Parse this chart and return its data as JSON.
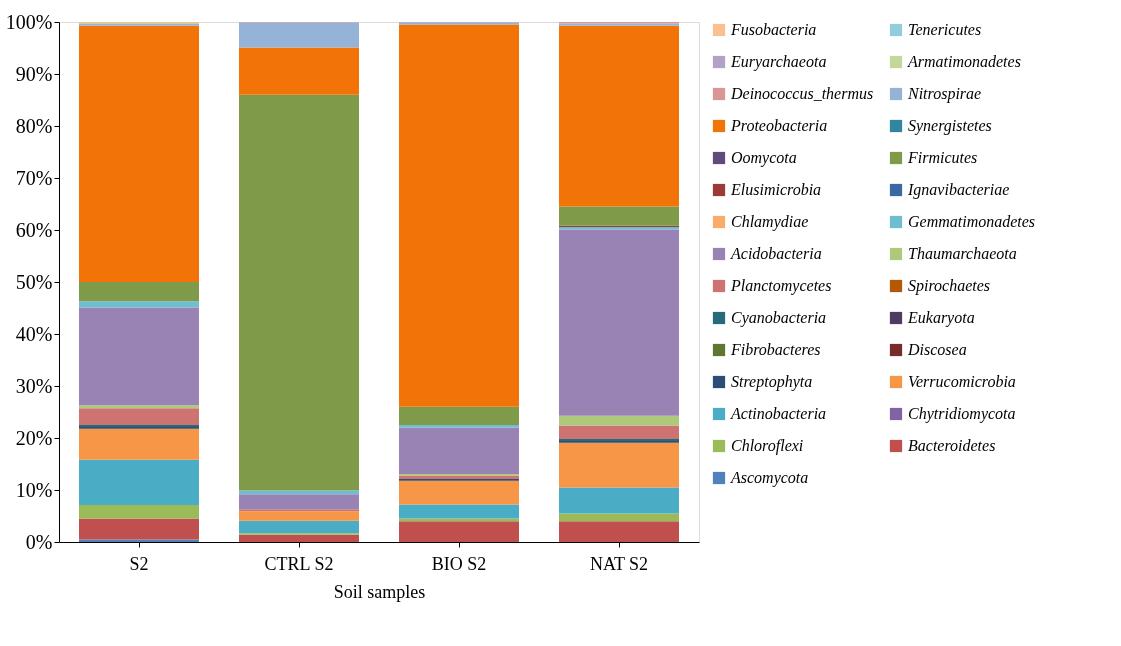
{
  "chart_data": {
    "type": "bar",
    "stacked": true,
    "xlabel": "Soil samples",
    "legend": "right",
    "categories": [
      "S2",
      "CTRL S2",
      "BIO S2",
      "NAT S2"
    ],
    "ylim": [
      0,
      100
    ],
    "yticks": [
      {
        "value": 0,
        "label": "0%"
      },
      {
        "value": 10,
        "label": "10%"
      },
      {
        "value": 20,
        "label": "20%"
      },
      {
        "value": 30,
        "label": "30%"
      },
      {
        "value": 40,
        "label": "40%"
      },
      {
        "value": 50,
        "label": "50%"
      },
      {
        "value": 60,
        "label": "60%"
      },
      {
        "value": 70,
        "label": "70%"
      },
      {
        "value": 80,
        "label": "80%"
      },
      {
        "value": 90,
        "label": "90%"
      },
      {
        "value": 100,
        "label": "100%"
      }
    ],
    "series": [
      {
        "name": "Ascomycota",
        "color": "#4f81bd",
        "values": [
          0.5,
          0,
          0,
          0
        ]
      },
      {
        "name": "Bacteroidetes",
        "color": "#c0504d",
        "values": [
          4.0,
          1.4,
          4.0,
          4.0
        ]
      },
      {
        "name": "Chloroflexi",
        "color": "#9bbb59",
        "values": [
          2.6,
          0.3,
          0.5,
          1.5
        ]
      },
      {
        "name": "Chytridiomycota",
        "color": "#8064a2",
        "values": [
          0,
          0,
          0,
          0
        ]
      },
      {
        "name": "Actinobacteria",
        "color": "#4bacc6",
        "values": [
          8.7,
          2.4,
          2.7,
          5.0
        ]
      },
      {
        "name": "Verrucomicrobia",
        "color": "#f79646",
        "values": [
          6.0,
          1.8,
          4.6,
          8.6
        ]
      },
      {
        "name": "Streptophyta",
        "color": "#2c4d75",
        "values": [
          0.3,
          0,
          0.3,
          0.3
        ]
      },
      {
        "name": "Discosea",
        "color": "#772c2a",
        "values": [
          0,
          0,
          0,
          0
        ]
      },
      {
        "name": "Fibrobacteres",
        "color": "#5f7530",
        "values": [
          0,
          0,
          0,
          0
        ]
      },
      {
        "name": "Eukaryota",
        "color": "#4d3b62",
        "values": [
          0,
          0,
          0,
          0
        ]
      },
      {
        "name": "Cyanobacteria",
        "color": "#276a7c",
        "values": [
          0.4,
          0,
          0,
          0.4
        ]
      },
      {
        "name": "Spirochaetes",
        "color": "#b65708",
        "values": [
          0,
          0,
          0,
          0
        ]
      },
      {
        "name": "Planctomycetes",
        "color": "#cd7371",
        "values": [
          3.2,
          0.4,
          0.7,
          2.6
        ]
      },
      {
        "name": "Thaumarchaeota",
        "color": "#afc97a",
        "values": [
          0.6,
          0,
          0.3,
          1.9
        ]
      },
      {
        "name": "Acidobacteria",
        "color": "#9983b5",
        "values": [
          18.8,
          2.9,
          8.9,
          35.8
        ]
      },
      {
        "name": "Gemmatimonadetes",
        "color": "#6fbdd1",
        "values": [
          1.2,
          0.7,
          0.5,
          0.5
        ]
      },
      {
        "name": "Chlamydiae",
        "color": "#f9ab6b",
        "values": [
          0,
          0,
          0,
          0
        ]
      },
      {
        "name": "Ignavibacteriae",
        "color": "#3a68a3",
        "values": [
          0,
          0,
          0,
          0
        ]
      },
      {
        "name": "Elusimicrobia",
        "color": "#9c3a38",
        "values": [
          0,
          0,
          0,
          0.2
        ]
      },
      {
        "name": "Firmicutes",
        "color": "#7f9a48",
        "values": [
          3.7,
          76.1,
          3.5,
          3.7
        ]
      },
      {
        "name": "Oomycota",
        "color": "#604a7b",
        "values": [
          0,
          0,
          0,
          0
        ]
      },
      {
        "name": "Synergistetes",
        "color": "#31859c",
        "values": [
          0,
          0,
          0,
          0
        ]
      },
      {
        "name": "Proteobacteria",
        "color": "#f27409",
        "values": [
          49.3,
          9.1,
          73.5,
          34.8
        ]
      },
      {
        "name": "Nitrospirae",
        "color": "#95b3d7",
        "values": [
          0.3,
          4.8,
          0.4,
          0.4
        ]
      },
      {
        "name": "Deinococcus_thermus",
        "color": "#d99694",
        "values": [
          0,
          0.1,
          0,
          0.3
        ]
      },
      {
        "name": "Armatimonadetes",
        "color": "#c3d69b",
        "values": [
          0.2,
          0,
          0,
          0
        ]
      },
      {
        "name": "Euryarchaeota",
        "color": "#b3a2c7",
        "values": [
          0,
          0,
          0.1,
          0
        ]
      },
      {
        "name": "Tenericutes",
        "color": "#93cddd",
        "values": [
          0,
          0,
          0,
          0
        ]
      },
      {
        "name": "Fusobacteria",
        "color": "#fac090",
        "values": [
          0.2,
          0,
          0,
          0
        ]
      }
    ]
  }
}
